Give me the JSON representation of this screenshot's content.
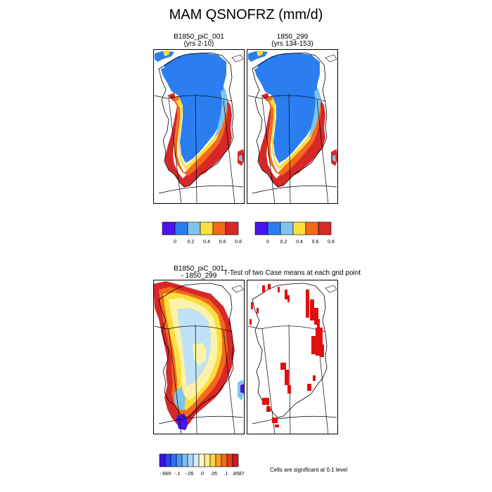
{
  "title": "MAM QSNOFRZ (mm/d)",
  "colors": {
    "land": "#2b7ef0",
    "purple": "#4a14f2",
    "light_blue": "#7ec4ee",
    "yellow": "#fbde3e",
    "orange": "#f46a1a",
    "red": "#d62828",
    "pale_blue": "#bfe2f6",
    "pale_yellow": "#fdf3a8",
    "sig_red": "#e01010"
  },
  "panels": [
    {
      "id": "case1",
      "title_line1": "B1850_piC_001",
      "title_line2": "(yrs 2-10)"
    },
    {
      "id": "case2",
      "title_line1": "1850_299",
      "title_line2": "(yrs 134-153)"
    },
    {
      "id": "diff",
      "title_line1": "B1850_piC_001",
      "title_line2": "- 1850_299"
    },
    {
      "id": "ttest",
      "title_line1": "T-Test of two Case means at each grid point",
      "title_line2": ""
    }
  ],
  "chart_data": [
    {
      "type": "heatmap",
      "title": "B1850_piC_001 (yrs 2-10)",
      "colorbar_labels": [
        "0",
        "0.2",
        "0.4",
        "0.6",
        "0.8"
      ],
      "colorbar_colors": [
        "#4a14f2",
        "#2b7ef0",
        "#7ec4ee",
        "#fbde3e",
        "#f46a1a",
        "#d62828"
      ]
    },
    {
      "type": "heatmap",
      "title": "1850_299 (yrs 134-153)",
      "colorbar_labels": [
        "0",
        "0.2",
        "0.4",
        "0.6",
        "0.8"
      ],
      "colorbar_colors": [
        "#4a14f2",
        "#2b7ef0",
        "#7ec4ee",
        "#fbde3e",
        "#f46a1a",
        "#d62828"
      ]
    },
    {
      "type": "heatmap",
      "title": "B1850_piC_001 - 1850_299",
      "colorbar_labels": [
        "-.689",
        "-.1",
        "-.05",
        ".0",
        ".05",
        ".1",
        ".8587"
      ],
      "colorbar_colors": [
        "#3a10e8",
        "#2a44f0",
        "#2f6ef0",
        "#4a98f2",
        "#78bdf2",
        "#a8d7f5",
        "#d2ecfa",
        "#fdf7c8",
        "#fde98a",
        "#fbd24a",
        "#f7a027",
        "#f26a1c",
        "#e23a1e",
        "#c71e1e"
      ]
    },
    {
      "type": "heatmap",
      "title": "T-Test of two Case means at each grid point",
      "note": "Cells are significant at 0.1 level"
    }
  ]
}
